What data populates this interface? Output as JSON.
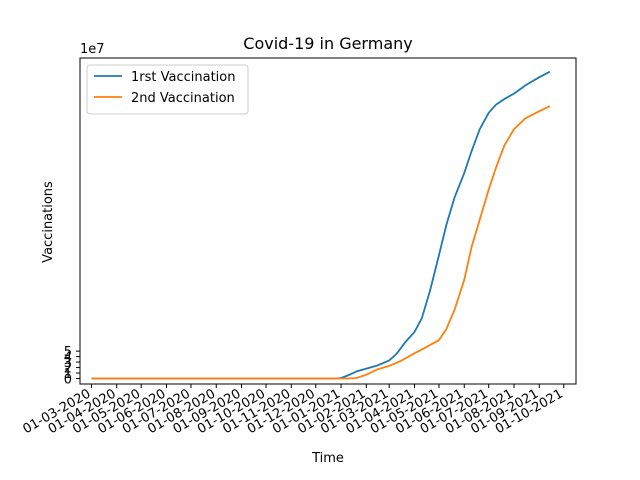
{
  "chart_data": {
    "type": "line",
    "title": "Covid-19 in Germany",
    "xlabel": "Time",
    "ylabel": "Vaccinations",
    "y_offset_label": "1e7",
    "x_range": [
      "2020-02-16",
      "2021-10-16"
    ],
    "ylim": [
      -1.0,
      58.5
    ],
    "y_ticks": [
      0,
      1,
      2,
      3,
      4,
      5
    ],
    "x_ticks": [
      {
        "date": "2020-03-01",
        "label": "01-03-2020"
      },
      {
        "date": "2020-04-01",
        "label": "01-04-2020"
      },
      {
        "date": "2020-05-01",
        "label": "01-05-2020"
      },
      {
        "date": "2020-06-01",
        "label": "01-06-2020"
      },
      {
        "date": "2020-07-01",
        "label": "01-07-2020"
      },
      {
        "date": "2020-08-01",
        "label": "01-08-2020"
      },
      {
        "date": "2020-09-01",
        "label": "01-09-2020"
      },
      {
        "date": "2020-10-01",
        "label": "01-10-2020"
      },
      {
        "date": "2020-11-01",
        "label": "01-11-2020"
      },
      {
        "date": "2020-12-01",
        "label": "01-12-2020"
      },
      {
        "date": "2021-01-01",
        "label": "01-01-2021"
      },
      {
        "date": "2021-02-01",
        "label": "01-02-2021"
      },
      {
        "date": "2021-03-01",
        "label": "01-03-2021"
      },
      {
        "date": "2021-04-01",
        "label": "01-04-2021"
      },
      {
        "date": "2021-05-01",
        "label": "01-05-2021"
      },
      {
        "date": "2021-06-01",
        "label": "01-06-2021"
      },
      {
        "date": "2021-07-01",
        "label": "01-07-2021"
      },
      {
        "date": "2021-08-01",
        "label": "01-08-2021"
      },
      {
        "date": "2021-09-01",
        "label": "01-09-2021"
      },
      {
        "date": "2021-10-01",
        "label": "01-10-2021"
      }
    ],
    "grid": false,
    "legend_position": "top-left",
    "series": [
      {
        "name": "1rst Vaccination",
        "color": "#1f77b4",
        "points": [
          [
            "2020-03-01",
            0
          ],
          [
            "2020-12-26",
            0
          ],
          [
            "2021-01-01",
            0.1
          ],
          [
            "2021-01-10",
            0.6
          ],
          [
            "2021-01-20",
            1.3
          ],
          [
            "2021-02-01",
            1.8
          ],
          [
            "2021-02-15",
            2.4
          ],
          [
            "2021-03-01",
            3.3
          ],
          [
            "2021-03-10",
            4.5
          ],
          [
            "2021-03-20",
            6.5
          ],
          [
            "2021-04-01",
            8.5
          ],
          [
            "2021-04-10",
            11.0
          ],
          [
            "2021-04-20",
            16.0
          ],
          [
            "2021-05-01",
            22.5
          ],
          [
            "2021-05-10",
            28.0
          ],
          [
            "2021-05-20",
            33.0
          ],
          [
            "2021-06-01",
            37.5
          ],
          [
            "2021-06-10",
            41.5
          ],
          [
            "2021-06-20",
            45.5
          ],
          [
            "2021-07-01",
            48.5
          ],
          [
            "2021-07-10",
            50.0
          ],
          [
            "2021-07-20",
            51.0
          ],
          [
            "2021-08-01",
            52.0
          ],
          [
            "2021-08-15",
            53.5
          ],
          [
            "2021-09-01",
            55.0
          ],
          [
            "2021-09-14",
            56.0
          ]
        ]
      },
      {
        "name": "2nd Vaccination",
        "color": "#ff7f0e",
        "points": [
          [
            "2020-03-01",
            0
          ],
          [
            "2021-01-10",
            0
          ],
          [
            "2021-01-20",
            0.1
          ],
          [
            "2021-02-01",
            0.7
          ],
          [
            "2021-02-15",
            1.7
          ],
          [
            "2021-03-01",
            2.3
          ],
          [
            "2021-03-15",
            3.2
          ],
          [
            "2021-04-01",
            4.6
          ],
          [
            "2021-04-15",
            5.7
          ],
          [
            "2021-05-01",
            7.0
          ],
          [
            "2021-05-10",
            9.0
          ],
          [
            "2021-05-20",
            12.5
          ],
          [
            "2021-06-01",
            18.0
          ],
          [
            "2021-06-10",
            24.0
          ],
          [
            "2021-06-20",
            29.0
          ],
          [
            "2021-07-01",
            34.5
          ],
          [
            "2021-07-10",
            38.5
          ],
          [
            "2021-07-20",
            42.5
          ],
          [
            "2021-08-01",
            45.5
          ],
          [
            "2021-08-15",
            47.5
          ],
          [
            "2021-09-01",
            48.8
          ],
          [
            "2021-09-14",
            49.7
          ]
        ]
      }
    ]
  }
}
